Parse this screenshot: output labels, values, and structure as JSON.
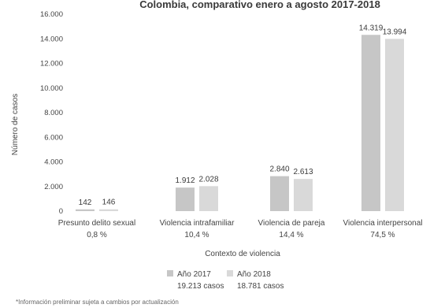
{
  "chart_data": {
    "type": "bar",
    "title": "Colombia, comparativo enero a agosto 2017-2018",
    "xlabel": "Contexto de violencia",
    "ylabel": "Número de casos",
    "ylim": [
      0,
      16000
    ],
    "yticks": [
      0,
      2000,
      4000,
      6000,
      8000,
      10000,
      12000,
      14000,
      16000
    ],
    "ytick_labels": [
      "0",
      "2.000",
      "4.000",
      "6.000",
      "8.000",
      "10.000",
      "12.000",
      "14.000",
      "16.000"
    ],
    "categories": [
      {
        "name": "Presunto delito sexual",
        "pct": "0,8 %"
      },
      {
        "name": "Violencia intrafamiliar",
        "pct": "10,4 %"
      },
      {
        "name": "Violencia de pareja",
        "pct": "14,4 %"
      },
      {
        "name": "Violencia interpersonal",
        "pct": "74,5 %"
      }
    ],
    "series": [
      {
        "name": "Año 2017",
        "total": "19.213 casos",
        "color": "#c6c6c6",
        "values": [
          142,
          1912,
          2840,
          14319
        ],
        "labels": [
          "142",
          "1.912",
          "2.840",
          "14.319"
        ]
      },
      {
        "name": "Año 2018",
        "total": "18.781 casos",
        "color": "#d9d9d9",
        "values": [
          146,
          2028,
          2613,
          13994
        ],
        "labels": [
          "146",
          "2.028",
          "2.613",
          "13.994"
        ]
      }
    ],
    "grid": false,
    "legend_position": "bottom"
  },
  "footnote": "*Información preliminar sujeta a cambios por actualización"
}
